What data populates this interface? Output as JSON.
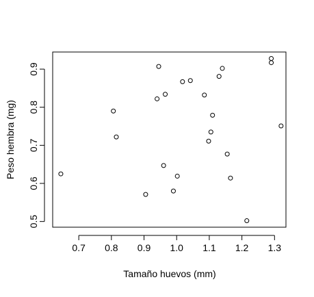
{
  "colors": {
    "background": "#ffffff",
    "axis": "#000000",
    "point_stroke": "#000000",
    "point_fill": "#ffffff"
  },
  "chart_data": {
    "type": "scatter",
    "xlabel": "Tamaño huevos (mm)",
    "ylabel": "Peso hembra (mg)",
    "xlim": [
      0.62,
      1.335
    ],
    "ylim": [
      0.485,
      0.945
    ],
    "x_ticks": [
      0.7,
      0.8,
      0.9,
      1.0,
      1.1,
      1.2,
      1.3
    ],
    "x_tick_labels": [
      "0.7",
      "0.8",
      "0.9",
      "1.0",
      "1.1",
      "1.2",
      "1.3"
    ],
    "y_ticks": [
      0.5,
      0.6,
      0.7,
      0.8,
      0.9
    ],
    "y_tick_labels": [
      "0.5",
      "0.6",
      "0.7",
      "0.8",
      "0.9"
    ],
    "grid": false,
    "legend": "none",
    "marker": "open-circle",
    "points": [
      {
        "x": 0.645,
        "y": 0.625
      },
      {
        "x": 0.806,
        "y": 0.79
      },
      {
        "x": 0.815,
        "y": 0.722
      },
      {
        "x": 0.905,
        "y": 0.571
      },
      {
        "x": 0.94,
        "y": 0.822
      },
      {
        "x": 0.945,
        "y": 0.907
      },
      {
        "x": 0.96,
        "y": 0.647
      },
      {
        "x": 0.965,
        "y": 0.834
      },
      {
        "x": 0.99,
        "y": 0.58
      },
      {
        "x": 1.002,
        "y": 0.619
      },
      {
        "x": 1.018,
        "y": 0.867
      },
      {
        "x": 1.042,
        "y": 0.87
      },
      {
        "x": 1.085,
        "y": 0.832
      },
      {
        "x": 1.098,
        "y": 0.711
      },
      {
        "x": 1.105,
        "y": 0.735
      },
      {
        "x": 1.11,
        "y": 0.779
      },
      {
        "x": 1.13,
        "y": 0.881
      },
      {
        "x": 1.14,
        "y": 0.902
      },
      {
        "x": 1.155,
        "y": 0.677
      },
      {
        "x": 1.165,
        "y": 0.614
      },
      {
        "x": 1.215,
        "y": 0.502
      },
      {
        "x": 1.29,
        "y": 0.917
      },
      {
        "x": 1.29,
        "y": 0.928
      },
      {
        "x": 1.32,
        "y": 0.751
      }
    ]
  }
}
